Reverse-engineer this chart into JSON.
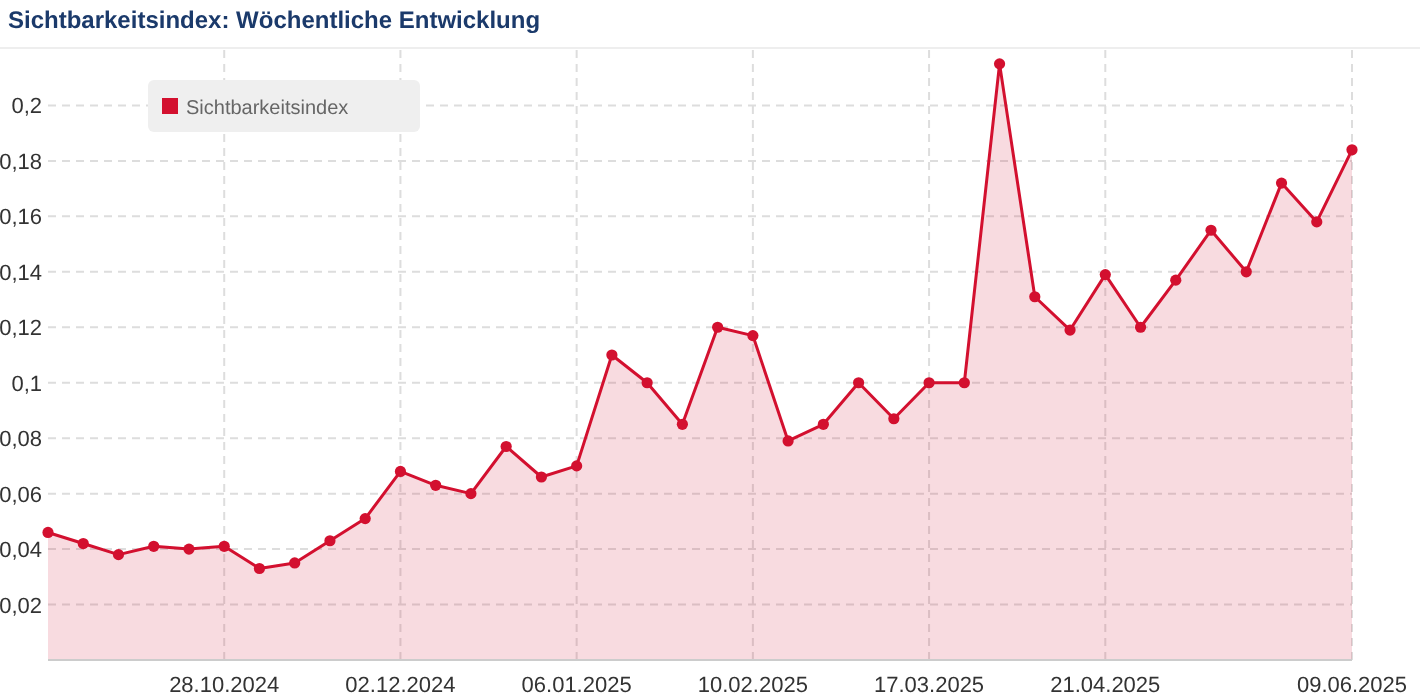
{
  "chart_data": {
    "type": "area",
    "title": "Sichtbarkeitsindex: Wöchentliche Entwicklung",
    "x": [
      "2024-09-23",
      "2024-09-30",
      "2024-10-07",
      "2024-10-14",
      "2024-10-21",
      "2024-10-28",
      "2024-11-04",
      "2024-11-11",
      "2024-11-18",
      "2024-11-25",
      "2024-12-02",
      "2024-12-09",
      "2024-12-16",
      "2024-12-23",
      "2024-12-30",
      "2025-01-06",
      "2025-01-13",
      "2025-01-20",
      "2025-01-27",
      "2025-02-03",
      "2025-02-10",
      "2025-02-17",
      "2025-02-24",
      "2025-03-03",
      "2025-03-10",
      "2025-03-17",
      "2025-03-24",
      "2025-03-31",
      "2025-04-07",
      "2025-04-14",
      "2025-04-21",
      "2025-04-28",
      "2025-05-05",
      "2025-05-12",
      "2025-05-19",
      "2025-05-26",
      "2025-06-02",
      "2025-06-09"
    ],
    "series": [
      {
        "name": "Sichtbarkeitsindex",
        "color": "#d3102f",
        "values": [
          0.046,
          0.042,
          0.038,
          0.041,
          0.04,
          0.041,
          0.033,
          0.035,
          0.043,
          0.051,
          0.068,
          0.063,
          0.06,
          0.077,
          0.066,
          0.07,
          0.11,
          0.1,
          0.085,
          0.12,
          0.117,
          0.079,
          0.085,
          0.1,
          0.087,
          0.1,
          0.1,
          0.215,
          0.131,
          0.119,
          0.139,
          0.12,
          0.137,
          0.155,
          0.14,
          0.172,
          0.158,
          0.184
        ]
      }
    ],
    "xlim": [
      "2024-09-23",
      "2025-06-09"
    ],
    "xticks": [
      {
        "value": "2024-10-28",
        "label": "28.10.2024"
      },
      {
        "value": "2024-12-02",
        "label": "02.12.2024"
      },
      {
        "value": "2025-01-06",
        "label": "06.01.2025"
      },
      {
        "value": "2025-02-10",
        "label": "10.02.2025"
      },
      {
        "value": "2025-03-17",
        "label": "17.03.2025"
      },
      {
        "value": "2025-04-21",
        "label": "21.04.2025"
      },
      {
        "value": "2025-06-09",
        "label": "09.06.2025"
      }
    ],
    "ylim": [
      0,
      0.22
    ],
    "yticks": [
      {
        "value": 0.02,
        "label": "0,02"
      },
      {
        "value": 0.04,
        "label": "0,04"
      },
      {
        "value": 0.06,
        "label": "0,06"
      },
      {
        "value": 0.08,
        "label": "0,08"
      },
      {
        "value": 0.1,
        "label": "0,1"
      },
      {
        "value": 0.12,
        "label": "0,12"
      },
      {
        "value": 0.14,
        "label": "0,14"
      },
      {
        "value": 0.16,
        "label": "0,16"
      },
      {
        "value": 0.18,
        "label": "0,18"
      },
      {
        "value": 0.2,
        "label": "0,2"
      }
    ],
    "grid": true,
    "legend": "top left",
    "marker": "circle",
    "line_style": "solid"
  }
}
